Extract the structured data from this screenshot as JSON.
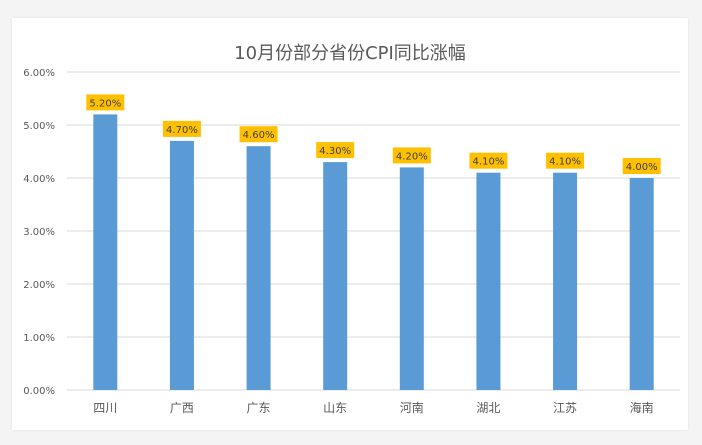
{
  "chart_data": {
    "type": "bar",
    "title": "10月份部分省份CPI同比涨幅",
    "categories": [
      "四川",
      "广西",
      "广东",
      "山东",
      "河南",
      "湖北",
      "江苏",
      "海南"
    ],
    "values": [
      5.2,
      4.7,
      4.6,
      4.3,
      4.2,
      4.1,
      4.1,
      4.0
    ],
    "data_labels": [
      "5.20%",
      "4.70%",
      "4.60%",
      "4.30%",
      "4.20%",
      "4.10%",
      "4.10%",
      "4.00%"
    ],
    "y_ticks": [
      0,
      1,
      2,
      3,
      4,
      5,
      6
    ],
    "y_tick_labels": [
      "0.00%",
      "1.00%",
      "2.00%",
      "3.00%",
      "4.00%",
      "5.00%",
      "6.00%"
    ],
    "ylim": [
      0,
      6
    ],
    "grid": true,
    "legend": "none",
    "colors": {
      "bar": "#5b9bd5",
      "label_bg": "#ffc000",
      "grid": "#d9d9d9",
      "axis_text": "#595959",
      "title": "#595959"
    }
  }
}
